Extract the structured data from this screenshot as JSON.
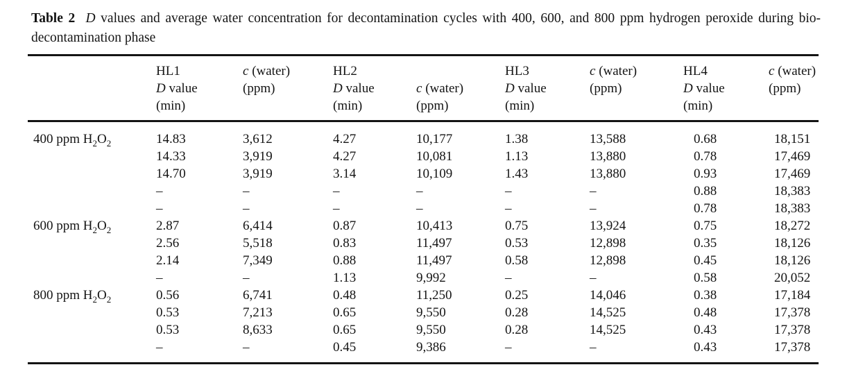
{
  "caption": {
    "line1_parts": [
      {
        "text": "Table 2",
        "style": "bold"
      },
      {
        "text": "  ",
        "style": "normal"
      },
      {
        "text": "D",
        "style": "italic"
      },
      {
        "text": " values and average water concentration for decontamination cycles with 400, 600, and 800 ppm hydrogen peroxide during bio-",
        "style": "normal"
      }
    ],
    "line2": "decontamination phase"
  },
  "table": {
    "columns": [
      {
        "key": "row-label",
        "header_lines": []
      },
      {
        "key": "hl1-d-value",
        "header_lines": [
          [
            {
              "t": "HL1"
            }
          ],
          [
            {
              "i": "D"
            },
            {
              "t": " value"
            }
          ],
          [
            {
              "t": "(min)"
            }
          ]
        ]
      },
      {
        "key": "hl1-c-water",
        "header_lines": [
          [
            {
              "i": "c"
            },
            {
              "t": " (water)"
            }
          ],
          [
            {
              "t": "(ppm)"
            }
          ]
        ]
      },
      {
        "key": "hl2-d-value",
        "header_lines": [
          [
            {
              "t": "HL2"
            }
          ],
          [
            {
              "i": "D"
            },
            {
              "t": " value"
            }
          ],
          [
            {
              "t": "(min)"
            }
          ]
        ]
      },
      {
        "key": "hl2-c-water",
        "header_lines": [
          [],
          [
            {
              "i": "c"
            },
            {
              "t": " (water)"
            }
          ],
          [
            {
              "t": "(ppm)"
            }
          ]
        ]
      },
      {
        "key": "hl3-d-value",
        "header_lines": [
          [
            {
              "t": "HL3"
            }
          ],
          [
            {
              "i": "D"
            },
            {
              "t": " value"
            }
          ],
          [
            {
              "t": "(min)"
            }
          ]
        ]
      },
      {
        "key": "hl3-c-water",
        "header_lines": [
          [
            {
              "i": "c"
            },
            {
              "t": " (water)"
            }
          ],
          [
            {
              "t": "(ppm)"
            }
          ]
        ]
      },
      {
        "key": "hl4-d-value",
        "header_lines": [
          [
            {
              "t": "HL4"
            }
          ],
          [
            {
              "i": "D"
            },
            {
              "t": " value"
            }
          ],
          [
            {
              "t": "(min)"
            }
          ]
        ]
      },
      {
        "key": "hl4-c-water",
        "header_lines": [
          [
            {
              "i": "c"
            },
            {
              "t": " (water)"
            }
          ],
          [
            {
              "t": "(ppm)"
            }
          ]
        ]
      }
    ],
    "groups": [
      {
        "label_parts": [
          {
            "t": "400 ppm H"
          },
          {
            "sub": "2"
          },
          {
            "t": "O"
          },
          {
            "sub": "2"
          }
        ],
        "rows": [
          [
            "14.83",
            "3,612",
            "4.27",
            "10,177",
            "1.38",
            "13,588",
            "0.68",
            "18,151"
          ],
          [
            "14.33",
            "3,919",
            "4.27",
            "10,081",
            "1.13",
            "13,880",
            "0.78",
            "17,469"
          ],
          [
            "14.70",
            "3,919",
            "3.14",
            "10,109",
            "1.43",
            "13,880",
            "0.93",
            "17,469"
          ],
          [
            "–",
            "–",
            "–",
            "–",
            "–",
            "–",
            "0.88",
            "18,383"
          ],
          [
            "–",
            "–",
            "–",
            "–",
            "–",
            "–",
            "0.78",
            "18,383"
          ]
        ]
      },
      {
        "label_parts": [
          {
            "t": "600 ppm H"
          },
          {
            "sub": "2"
          },
          {
            "t": "O"
          },
          {
            "sub": "2"
          }
        ],
        "rows": [
          [
            "2.87",
            "6,414",
            "0.87",
            "10,413",
            "0.75",
            "13,924",
            "0.75",
            "18,272"
          ],
          [
            "2.56",
            "5,518",
            "0.83",
            "11,497",
            "0.53",
            "12,898",
            "0.35",
            "18,126"
          ],
          [
            "2.14",
            "7,349",
            "0.88",
            "11,497",
            "0.58",
            "12,898",
            "0.45",
            "18,126"
          ],
          [
            "–",
            "–",
            "1.13",
            "9,992",
            "–",
            "–",
            "0.58",
            "20,052"
          ]
        ]
      },
      {
        "label_parts": [
          {
            "t": "800 ppm H"
          },
          {
            "sub": "2"
          },
          {
            "t": "O"
          },
          {
            "sub": "2"
          }
        ],
        "rows": [
          [
            "0.56",
            "6,741",
            "0.48",
            "11,250",
            "0.25",
            "14,046",
            "0.38",
            "17,184"
          ],
          [
            "0.53",
            "7,213",
            "0.65",
            "9,550",
            "0.28",
            "14,525",
            "0.48",
            "17,378"
          ],
          [
            "0.53",
            "8,633",
            "0.65",
            "9,550",
            "0.28",
            "14,525",
            "0.43",
            "17,378"
          ],
          [
            "–",
            "–",
            "0.45",
            "9,386",
            "–",
            "–",
            "0.43",
            "17,378"
          ]
        ]
      }
    ]
  }
}
